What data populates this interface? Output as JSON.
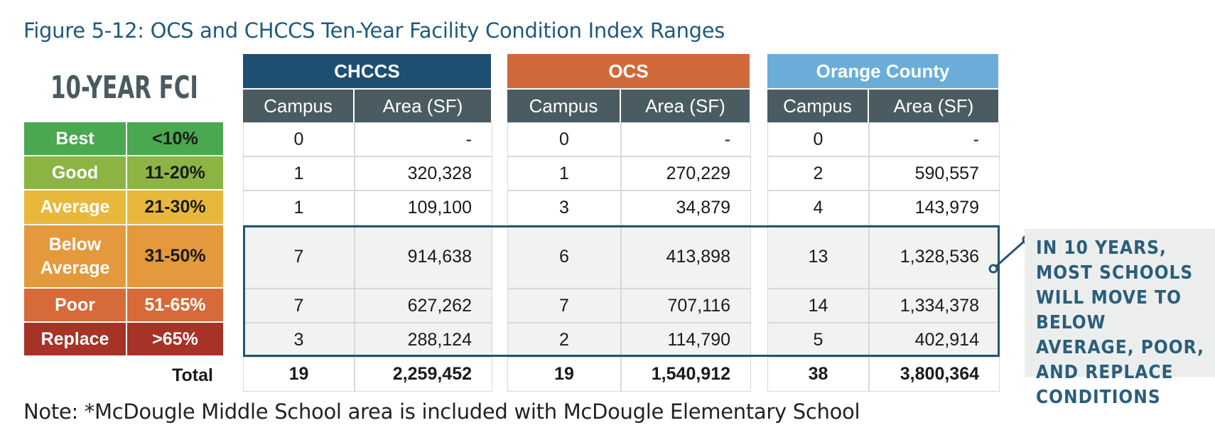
{
  "title": "Figure 5-12: OCS and CHCCS Ten-Year Facility Condition Index Ranges",
  "legend": {
    "heading": "10-YEAR FCI",
    "rows": [
      {
        "label": "Best",
        "range": "<10%",
        "color": "#4aa850"
      },
      {
        "label": "Good",
        "range": "11-20%",
        "color": "#8cb443"
      },
      {
        "label": "Average",
        "range": "21-30%",
        "color": "#e8b83a"
      },
      {
        "label": "Below Average",
        "range": "31-50%",
        "color": "#e3993c"
      },
      {
        "label": "Poor",
        "range": "51-65%",
        "color": "#d66a38"
      },
      {
        "label": "Replace",
        "range": ">65%",
        "color": "#a63228"
      }
    ]
  },
  "chart_data": {
    "type": "table",
    "title": "Figure 5-12: OCS and CHCCS Ten-Year Facility Condition Index Ranges",
    "column_labels": [
      "Campus",
      "Area (SF)"
    ],
    "total_label": "Total",
    "groups": [
      {
        "name": "CHCCS",
        "color": "#1f4e73",
        "campus": [
          "0",
          "1",
          "1",
          "7",
          "7",
          "3"
        ],
        "area": [
          "-",
          "320,328",
          "109,100",
          "914,638",
          "627,262",
          "288,124"
        ],
        "total_campus": "19",
        "total_area": "2,259,452"
      },
      {
        "name": "OCS",
        "color": "#d0693a",
        "campus": [
          "0",
          "1",
          "3",
          "6",
          "7",
          "2"
        ],
        "area": [
          "-",
          "270,229",
          "34,879",
          "413,898",
          "707,116",
          "114,790"
        ],
        "total_campus": "19",
        "total_area": "1,540,912"
      },
      {
        "name": "Orange County",
        "color": "#6aadd8",
        "campus": [
          "0",
          "2",
          "4",
          "13",
          "14",
          "5"
        ],
        "area": [
          "-",
          "590,557",
          "143,979",
          "1,328,536",
          "1,334,378",
          "402,914"
        ],
        "total_campus": "38",
        "total_area": "3,800,364"
      }
    ]
  },
  "callout": "In 10 years, most schools will move to below average, poor, and replace conditions",
  "footnote": "Note: *McDougle Middle School area is included with McDougle Elementary School"
}
